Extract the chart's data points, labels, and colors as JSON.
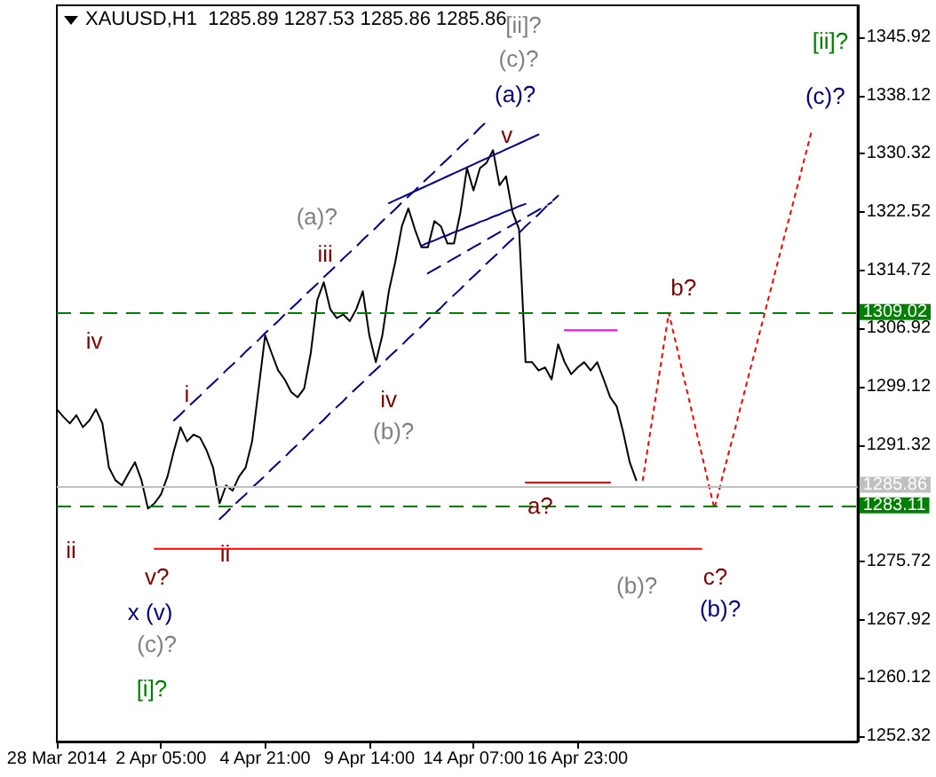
{
  "chart_data": {
    "type": "line",
    "title": "XAUUSD,H1  1285.89 1287.53 1285.86 1285.86",
    "categories": [
      "28 Mar 2014",
      null,
      null,
      null,
      null,
      null,
      null,
      null,
      null,
      null,
      null,
      null,
      null,
      null,
      null,
      null,
      "2 Apr 05:00",
      null,
      null,
      null,
      null,
      null,
      null,
      null,
      null,
      null,
      null,
      null,
      null,
      null,
      null,
      null,
      "4 Apr 21:00",
      null,
      null,
      null,
      null,
      null,
      null,
      null,
      null,
      null,
      null,
      null,
      null,
      null,
      null,
      null,
      "9 Apr 14:00",
      null,
      null,
      null,
      null,
      null,
      null,
      null,
      null,
      null,
      null,
      null,
      null,
      null,
      null,
      null,
      "14 Apr 07:00",
      null,
      null,
      null,
      null,
      null,
      null,
      null,
      null,
      null,
      null,
      null,
      null,
      null,
      null,
      null,
      "16 Apr 23:00",
      null,
      null,
      null,
      null,
      null,
      null,
      null,
      null,
      null,
      null,
      null,
      null,
      null,
      null,
      null,
      null,
      null,
      null,
      null,
      null,
      null,
      null,
      null,
      null,
      null,
      null,
      null,
      null,
      null,
      null,
      null,
      null,
      null,
      null,
      null,
      null,
      null,
      null,
      null,
      null,
      null,
      null,
      null
    ],
    "series": [
      {
        "color": "#000000",
        "values": [
          1296.1,
          1295.1,
          1294.2,
          1295.3,
          1293.7,
          1294.6,
          1296.1,
          1294.2,
          1288.3,
          1286.6,
          1285.9,
          1287.5,
          1289.0,
          1286.6,
          1282.8,
          1283.5,
          1284.7,
          1287.1,
          1290.6,
          1293.7,
          1291.8,
          1292.7,
          1292.3,
          1290.6,
          1288.3,
          1283.5,
          1285.9,
          1285.2,
          1287.1,
          1288.3,
          1291.8,
          1298.9,
          1306.0,
          1303.6,
          1301.3,
          1300.1,
          1298.4,
          1297.7,
          1298.9,
          1303.6,
          1310.7,
          1313.1,
          1309.5,
          1308.3,
          1308.8,
          1307.9,
          1309.5,
          1311.9,
          1306.0,
          1302.4,
          1306.0,
          1311.9,
          1315.9,
          1320.6,
          1323.0,
          1320.2,
          1317.8,
          1317.8,
          1321.3,
          1320.6,
          1318.3,
          1318.3,
          1322.5,
          1328.4,
          1325.4,
          1328.4,
          1329.1,
          1330.8,
          1326.1,
          1327.3,
          1322.5,
          1320.2,
          1302.4,
          1302.4,
          1301.3,
          1301.7,
          1300.1,
          1304.8,
          1302.4,
          1300.8,
          1301.7,
          1302.4,
          1301.3,
          1302.4,
          1300.1,
          1297.7,
          1296.5,
          1293.0,
          1289.0,
          1286.6,
          null,
          null,
          null,
          null,
          null,
          null,
          null,
          null,
          null,
          null,
          null,
          null,
          null,
          null,
          null,
          null,
          null,
          null,
          null,
          null,
          null,
          null,
          null,
          null,
          null,
          null,
          null,
          null,
          null,
          null,
          null,
          null,
          null,
          null
        ]
      },
      {
        "color": "#ff0000",
        "line_style": "dotted",
        "values": [
          null,
          null,
          null,
          null,
          null,
          null,
          null,
          null,
          null,
          null,
          null,
          null,
          null,
          null,
          null,
          null,
          null,
          null,
          null,
          null,
          null,
          null,
          null,
          null,
          null,
          null,
          null,
          null,
          null,
          null,
          null,
          null,
          null,
          null,
          null,
          null,
          null,
          null,
          null,
          null,
          null,
          null,
          null,
          null,
          null,
          null,
          null,
          null,
          null,
          null,
          null,
          null,
          null,
          null,
          null,
          null,
          null,
          null,
          null,
          null,
          null,
          null,
          null,
          null,
          null,
          null,
          null,
          null,
          null,
          null,
          null,
          null,
          null,
          null,
          null,
          null,
          null,
          null,
          null,
          null,
          null,
          null,
          null,
          null,
          null,
          null,
          null,
          null,
          null,
          null,
          1286.6,
          1292.2,
          1297.8,
          1303.4,
          1309.0,
          1305.3,
          1301.5,
          1297.8,
          1294.0,
          1290.3,
          1286.5,
          1282.8,
          1286.2,
          1289.6,
          1292.9,
          1296.3,
          1299.7,
          1303.1,
          1306.5,
          1309.9,
          1313.3,
          1316.7,
          1320.1,
          1323.4,
          1326.8,
          1330.2,
          1333.6,
          null,
          null,
          null,
          null,
          null,
          null,
          null
        ]
      },
      {
        "color": "#00008b",
        "line_style": "dashed",
        "values": [
          null,
          null,
          null,
          null,
          null,
          null,
          null,
          null,
          null,
          null,
          null,
          null,
          null,
          null,
          null,
          null,
          null,
          null,
          1294.6,
          1295.4,
          1296.3,
          1297.1,
          1297.9,
          1298.8,
          1299.6,
          1300.4,
          1301.3,
          1302.1,
          1302.9,
          1303.8,
          1304.6,
          1305.4,
          1306.3,
          1307.1,
          1307.9,
          1308.8,
          1309.6,
          1310.4,
          1311.3,
          1312.1,
          1312.9,
          1313.8,
          1314.6,
          1315.4,
          1316.3,
          1317.1,
          1317.9,
          1318.8,
          1319.6,
          1320.4,
          1321.3,
          1322.1,
          1322.9,
          1323.8,
          1324.6,
          1325.4,
          1326.3,
          1327.1,
          1327.9,
          1328.8,
          1329.6,
          1330.4,
          1331.3,
          1332.1,
          1332.9,
          1333.8,
          1334.6,
          null,
          null,
          null,
          null,
          null,
          null,
          null,
          null,
          null,
          null,
          null,
          null,
          null,
          null,
          null,
          null,
          null,
          null,
          null,
          null,
          null,
          null,
          null,
          null,
          null,
          null,
          null,
          null,
          null,
          null,
          null,
          null,
          null,
          null,
          null,
          null,
          null,
          null,
          null,
          null,
          null,
          null,
          null,
          null,
          null,
          null,
          null,
          null,
          null,
          null,
          null,
          null,
          null,
          null,
          null,
          null,
          null
        ]
      },
      {
        "color": "#00008b",
        "line_style": "dashed",
        "values": [
          null,
          null,
          null,
          null,
          null,
          null,
          null,
          null,
          null,
          null,
          null,
          null,
          null,
          null,
          null,
          null,
          null,
          null,
          null,
          null,
          null,
          null,
          null,
          null,
          null,
          1281.4,
          1282.2,
          1283.1,
          1283.9,
          1284.7,
          1285.6,
          1286.4,
          1287.2,
          1288.1,
          1288.9,
          1289.7,
          1290.6,
          1291.4,
          1292.2,
          1293.1,
          1293.9,
          1294.7,
          1295.6,
          1296.4,
          1297.2,
          1298.1,
          1298.9,
          1299.7,
          1300.6,
          1301.4,
          1302.2,
          1303.1,
          1303.9,
          1304.7,
          1305.6,
          1306.4,
          1307.2,
          1308.1,
          1308.9,
          1309.7,
          1310.6,
          1311.4,
          1312.2,
          1313.1,
          1313.9,
          1314.7,
          1315.6,
          1316.4,
          1317.2,
          1318.1,
          1318.9,
          1319.7,
          1320.6,
          1321.4,
          1322.2,
          1323.1,
          1323.9,
          1324.7,
          null,
          null,
          null,
          null,
          null,
          null,
          null,
          null,
          null,
          null,
          null,
          null,
          null,
          null,
          null,
          null,
          null,
          null,
          null,
          null,
          null,
          null,
          null,
          null,
          null,
          null,
          null,
          null,
          null,
          null,
          null,
          null,
          null,
          null,
          null,
          null,
          null,
          null,
          null,
          null,
          null,
          null,
          null,
          null,
          null,
          null
        ]
      },
      {
        "color": "#00008b",
        "line_style": "dashed",
        "values": [
          null,
          null,
          null,
          null,
          null,
          null,
          null,
          null,
          null,
          null,
          null,
          null,
          null,
          null,
          null,
          null,
          null,
          null,
          null,
          null,
          null,
          null,
          null,
          null,
          null,
          null,
          null,
          null,
          null,
          null,
          null,
          null,
          null,
          null,
          null,
          null,
          null,
          null,
          null,
          null,
          null,
          null,
          null,
          null,
          null,
          null,
          null,
          null,
          null,
          null,
          null,
          null,
          null,
          null,
          null,
          null,
          null,
          1314.3,
          1314.8,
          1315.3,
          1315.8,
          1316.3,
          1316.8,
          1317.3,
          1317.8,
          1318.3,
          1318.8,
          1319.3,
          1319.8,
          1320.3,
          1320.8,
          1321.3,
          1321.8,
          1322.3,
          1322.8,
          1323.3,
          1323.8,
          null,
          null,
          null,
          null,
          null,
          null,
          null,
          null,
          null,
          null,
          null,
          null,
          null,
          null,
          null,
          null,
          null,
          null,
          null,
          null,
          null,
          null,
          null,
          null,
          null,
          null,
          null,
          null,
          null,
          null,
          null,
          null,
          null,
          null,
          null,
          null,
          null,
          null,
          null,
          null,
          null,
          null,
          null,
          null,
          null,
          null,
          null
        ]
      },
      {
        "color": "#00008b",
        "line_style": "solid",
        "values": [
          null,
          null,
          null,
          null,
          null,
          null,
          null,
          null,
          null,
          null,
          null,
          null,
          null,
          null,
          null,
          null,
          null,
          null,
          null,
          null,
          null,
          null,
          null,
          null,
          null,
          null,
          null,
          null,
          null,
          null,
          null,
          null,
          null,
          null,
          null,
          null,
          null,
          null,
          null,
          null,
          null,
          null,
          null,
          null,
          null,
          null,
          null,
          null,
          null,
          null,
          null,
          1323.7,
          1324.1,
          1324.5,
          1324.9,
          1325.3,
          1325.7,
          1326.1,
          1326.5,
          1326.9,
          1327.3,
          1327.7,
          1328.1,
          1328.5,
          1328.9,
          1329.3,
          1329.7,
          1330.1,
          1330.5,
          1330.9,
          1331.3,
          1331.7,
          1332.1,
          1332.5,
          1332.9,
          null,
          null,
          null,
          null,
          null,
          null,
          null,
          null,
          null,
          null,
          null,
          null,
          null,
          null,
          null,
          null,
          null,
          null,
          null,
          null,
          null,
          null,
          null,
          null,
          null,
          null,
          null,
          null,
          null,
          null,
          null,
          null,
          null,
          null,
          null,
          null,
          null,
          null,
          null,
          null,
          null,
          null,
          null,
          null,
          null,
          null,
          null,
          null,
          null
        ]
      },
      {
        "color": "#00008b",
        "line_style": "solid",
        "values": [
          null,
          null,
          null,
          null,
          null,
          null,
          null,
          null,
          null,
          null,
          null,
          null,
          null,
          null,
          null,
          null,
          null,
          null,
          null,
          null,
          null,
          null,
          null,
          null,
          null,
          null,
          null,
          null,
          null,
          null,
          null,
          null,
          null,
          null,
          null,
          null,
          null,
          null,
          null,
          null,
          null,
          null,
          null,
          null,
          null,
          null,
          null,
          null,
          null,
          null,
          null,
          null,
          null,
          null,
          null,
          null,
          1318.0,
          1318.4,
          1318.7,
          1319.1,
          1319.4,
          1319.8,
          1320.1,
          1320.5,
          1320.8,
          1321.2,
          1321.5,
          1321.9,
          1322.2,
          1322.6,
          1322.9,
          1323.3,
          1323.6,
          null,
          null,
          null,
          null,
          null,
          null,
          null,
          null,
          null,
          null,
          null,
          null,
          null,
          null,
          null,
          null,
          null,
          null,
          null,
          null,
          null,
          null,
          null,
          null,
          null,
          null,
          null,
          null,
          null,
          null,
          null,
          null,
          null,
          null,
          null,
          null,
          null,
          null,
          null,
          null,
          null,
          null,
          null,
          null,
          null,
          null,
          null,
          null,
          null,
          null,
          null
        ]
      },
      {
        "color": "#ff0000",
        "line_style": "solid",
        "values": [
          null,
          null,
          null,
          null,
          null,
          null,
          null,
          null,
          null,
          null,
          null,
          null,
          null,
          null,
          null,
          1277.4,
          1277.4,
          1277.4,
          1277.4,
          1277.4,
          1277.4,
          1277.4,
          1277.4,
          1277.4,
          1277.4,
          1277.4,
          1277.4,
          1277.4,
          1277.4,
          1277.4,
          1277.4,
          1277.4,
          1277.4,
          1277.4,
          1277.4,
          1277.4,
          1277.4,
          1277.4,
          1277.4,
          1277.4,
          1277.4,
          1277.4,
          1277.4,
          1277.4,
          1277.4,
          1277.4,
          1277.4,
          1277.4,
          1277.4,
          1277.4,
          1277.4,
          1277.4,
          1277.4,
          1277.4,
          1277.4,
          1277.4,
          1277.4,
          1277.4,
          1277.4,
          1277.4,
          1277.4,
          1277.4,
          1277.4,
          1277.4,
          1277.4,
          1277.4,
          1277.4,
          1277.4,
          1277.4,
          1277.4,
          1277.4,
          1277.4,
          1277.4,
          1277.4,
          1277.4,
          1277.4,
          1277.4,
          1277.4,
          1277.4,
          1277.4,
          1277.4,
          1277.4,
          1277.4,
          1277.4,
          1277.4,
          1277.4,
          1277.4,
          1277.4,
          1277.4,
          1277.4,
          1277.4,
          1277.4,
          1277.4,
          1277.4,
          1277.4,
          1277.4,
          1277.4,
          1277.4,
          1277.4,
          1277.4,
          null,
          null,
          null,
          null,
          null,
          null,
          null,
          null,
          null,
          null,
          null,
          null,
          null,
          null,
          null,
          null,
          null,
          null,
          null,
          null,
          null,
          null,
          null,
          null
        ]
      },
      {
        "color": "#ff0000",
        "line_style": "solid",
        "values": [
          null,
          null,
          null,
          null,
          null,
          null,
          null,
          null,
          null,
          null,
          null,
          null,
          null,
          null,
          null,
          null,
          null,
          null,
          null,
          null,
          null,
          null,
          null,
          null,
          null,
          null,
          null,
          null,
          null,
          null,
          null,
          null,
          null,
          null,
          null,
          null,
          null,
          null,
          null,
          null,
          null,
          null,
          null,
          null,
          null,
          null,
          null,
          null,
          null,
          null,
          null,
          null,
          null,
          null,
          null,
          null,
          null,
          null,
          null,
          null,
          null,
          null,
          null,
          null,
          null,
          null,
          null,
          null,
          null,
          null,
          null,
          null,
          1286.3,
          1286.3,
          1286.3,
          1286.3,
          1286.3,
          1286.3,
          1286.3,
          1286.3,
          1286.3,
          1286.3,
          1286.3,
          1286.3,
          1286.3,
          1286.3,
          null,
          null,
          null,
          null,
          null,
          null,
          null,
          null,
          null,
          null,
          null,
          null,
          null,
          null,
          null,
          null,
          null,
          null,
          null,
          null,
          null,
          null,
          null,
          null,
          null,
          null,
          null,
          null,
          null,
          null,
          null,
          null,
          null,
          null,
          null,
          null,
          null,
          null
        ]
      },
      {
        "color": "#ff00ff",
        "line_style": "solid",
        "values": [
          null,
          null,
          null,
          null,
          null,
          null,
          null,
          null,
          null,
          null,
          null,
          null,
          null,
          null,
          null,
          null,
          null,
          null,
          null,
          null,
          null,
          null,
          null,
          null,
          null,
          null,
          null,
          null,
          null,
          null,
          null,
          null,
          null,
          null,
          null,
          null,
          null,
          null,
          null,
          null,
          null,
          null,
          null,
          null,
          null,
          null,
          null,
          null,
          null,
          null,
          null,
          null,
          null,
          null,
          null,
          null,
          null,
          null,
          null,
          null,
          null,
          null,
          null,
          null,
          null,
          null,
          null,
          null,
          null,
          null,
          null,
          null,
          null,
          null,
          null,
          null,
          null,
          null,
          1306.7,
          1306.7,
          1306.7,
          1306.7,
          1306.7,
          1306.7,
          1306.7,
          1306.7,
          1306.7,
          null,
          null,
          null,
          null,
          null,
          null,
          null,
          null,
          null,
          null,
          null,
          null,
          null,
          null,
          null,
          null,
          null,
          null,
          null,
          null,
          null,
          null,
          null,
          null,
          null,
          null,
          null,
          null,
          null,
          null,
          null,
          null,
          null,
          null,
          null,
          null,
          null
        ]
      }
    ],
    "ylim": [
      1251.6,
      1350.2
    ],
    "yticks": [
      1252.32,
      1260.12,
      1267.92,
      1275.72,
      1291.32,
      1299.12,
      1306.92,
      1314.72,
      1322.52,
      1330.32,
      1338.12,
      1345.92
    ],
    "ref_lines": [
      {
        "axis": "y",
        "value": 1309.02,
        "label": "1309.02",
        "color": "#008000",
        "line_style": "dashed"
      },
      {
        "axis": "y",
        "value": 1283.11,
        "label": "1283.11",
        "color": "#008000",
        "line_style": "dashed"
      },
      {
        "axis": "y",
        "value": 1285.86,
        "label": "1285.86",
        "color": "#c0c0c0",
        "line_style": "solid"
      }
    ],
    "annotations": [
      "[ii]?",
      "(c)?",
      "(a)?",
      "v",
      "(a)?",
      "iii",
      "iv",
      "i",
      "iv",
      "(b)?",
      "ii",
      "ii",
      "v?",
      "x (v)",
      "(c)?",
      "[i]?",
      "a?",
      "b?",
      "(b)?",
      "c?",
      "(b)?",
      "[ii]?",
      "(c)?"
    ],
    "grid": false,
    "marker": "none"
  }
}
